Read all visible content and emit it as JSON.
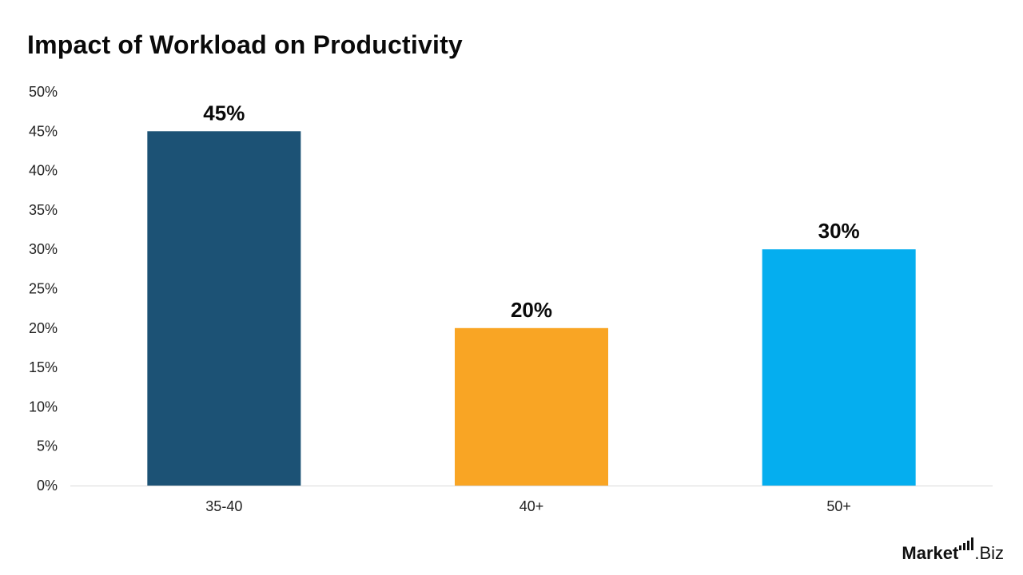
{
  "chart_data": {
    "type": "bar",
    "title": "Impact of Workload on Productivity",
    "categories": [
      "35-40",
      "40+",
      "50+"
    ],
    "values": [
      45,
      20,
      30
    ],
    "value_labels": [
      "45%",
      "20%",
      "30%"
    ],
    "colors": [
      "#1c5275",
      "#f9a524",
      "#05aeef"
    ],
    "ylim": [
      0,
      50
    ],
    "yticks": [
      0,
      5,
      10,
      15,
      20,
      25,
      30,
      35,
      40,
      45,
      50
    ],
    "ytick_suffix": "%",
    "xlabel": "",
    "ylabel": "",
    "grid": false,
    "legend": "none",
    "axis_color": "#d9d9d9"
  },
  "brand": {
    "name_strong": "Market",
    "name_light": "Biz",
    "separator": "."
  }
}
